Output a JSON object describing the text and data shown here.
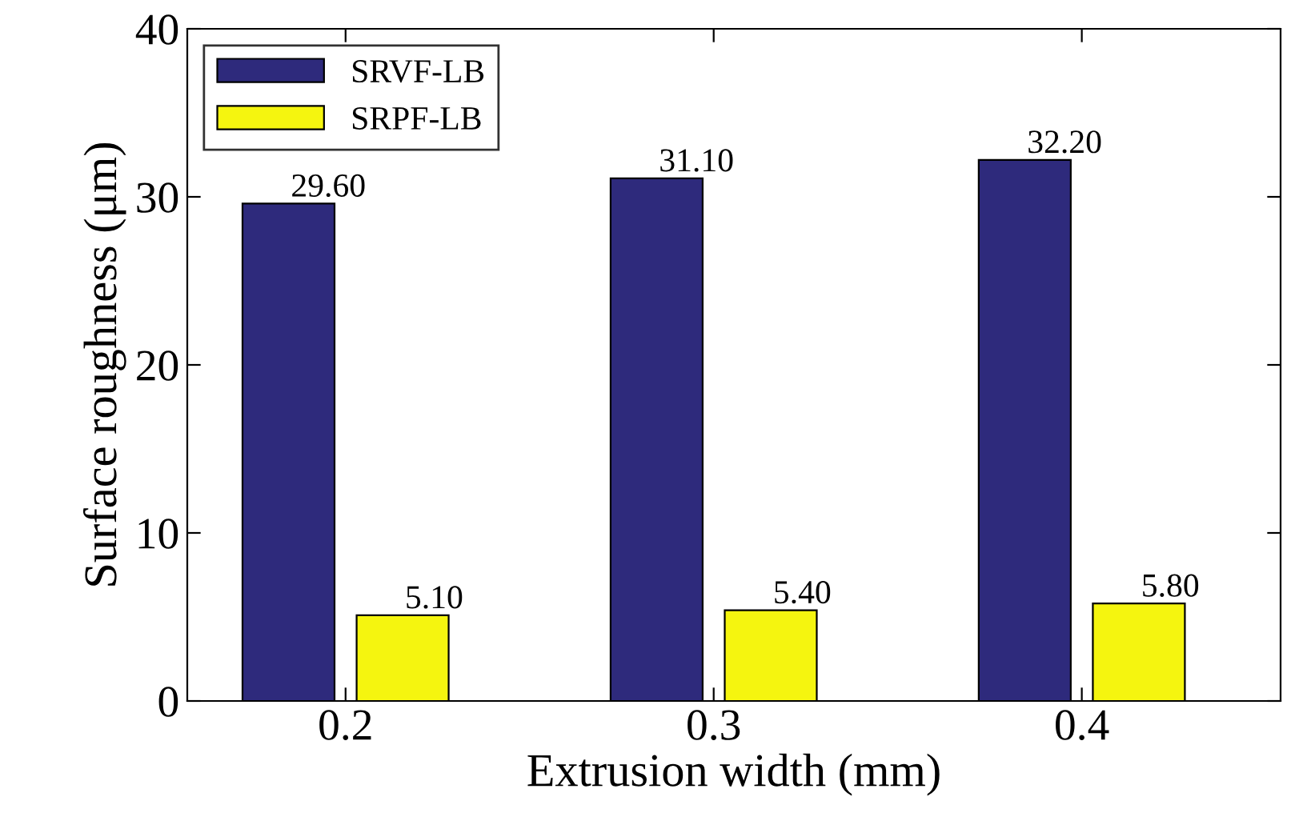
{
  "chart_data": {
    "type": "bar",
    "xlabel": "Extrusion width (mm)",
    "ylabel": "Surface roughness (μm)",
    "categories": [
      "0.2",
      "0.3",
      "0.4"
    ],
    "series": [
      {
        "name": "SRVF-LB",
        "color": "#2e2a7c",
        "values": [
          29.6,
          31.1,
          32.2
        ],
        "value_labels": [
          "29.60",
          "31.10",
          "32.20"
        ]
      },
      {
        "name": "SRPF-LB",
        "color": "#f5f50f",
        "values": [
          5.1,
          5.4,
          5.8
        ],
        "value_labels": [
          "5.10",
          "5.40",
          "5.80"
        ]
      }
    ],
    "ylim": [
      0,
      40
    ],
    "yticks": [
      0,
      10,
      20,
      30,
      40
    ],
    "grid": false,
    "legend": "top left"
  }
}
